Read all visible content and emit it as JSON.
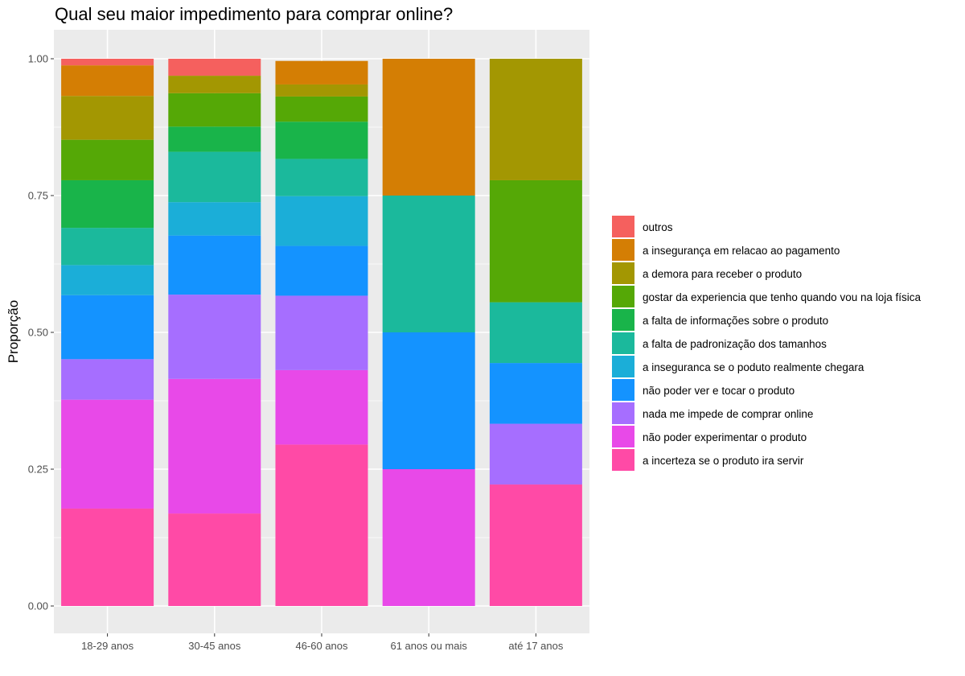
{
  "chart_data": {
    "type": "bar",
    "stacked": true,
    "normalized": true,
    "title": "Qual seu maior impedimento para comprar online?",
    "xlabel": "",
    "ylabel": "Proporção",
    "ylim": [
      0,
      1
    ],
    "yticks": [
      "0.00",
      "0.25",
      "0.50",
      "0.75",
      "1.00"
    ],
    "ytick_values": [
      0,
      0.25,
      0.5,
      0.75,
      1
    ],
    "grid": true,
    "legend_position": "right",
    "categories": [
      "18-29 anos",
      "30-45 anos",
      "46-60 anos",
      "61 anos ou mais",
      "até 17 anos"
    ],
    "series": [
      {
        "name": "a incerteza se o produto ira servir",
        "color": "#FF4AA6",
        "values": [
          0.178,
          0.169,
          0.295,
          0.0,
          0.222
        ]
      },
      {
        "name": "não poder experimentar o produto",
        "color": "#E849E8",
        "values": [
          0.199,
          0.246,
          0.136,
          0.25,
          0.0
        ]
      },
      {
        "name": "nada me impede de comprar online",
        "color": "#A66EFF",
        "values": [
          0.074,
          0.154,
          0.136,
          0.0,
          0.111
        ]
      },
      {
        "name": "não poder ver e tocar o produto",
        "color": "#1493FF",
        "values": [
          0.117,
          0.108,
          0.091,
          0.25,
          0.111
        ]
      },
      {
        "name": "a inseguranca se o poduto realmente chegara",
        "color": "#1BAED8",
        "values": [
          0.055,
          0.061,
          0.091,
          0.0,
          0.0
        ]
      },
      {
        "name": "a falta de padronização dos tamanhos",
        "color": "#1BB99C",
        "values": [
          0.068,
          0.092,
          0.068,
          0.25,
          0.111
        ]
      },
      {
        "name": "a falta de informações sobre o produto",
        "color": "#19B44A",
        "values": [
          0.087,
          0.046,
          0.068,
          0.0,
          0.0
        ]
      },
      {
        "name": "gostar da experiencia que tenho quando vou na loja física",
        "color": "#55A806",
        "values": [
          0.074,
          0.061,
          0.046,
          0.0,
          0.223
        ]
      },
      {
        "name": "a demora para receber o produto",
        "color": "#A39702",
        "values": [
          0.08,
          0.032,
          0.022,
          0.0,
          0.222
        ]
      },
      {
        "name": "a insegurança em relacao ao pagamento",
        "color": "#D47E04",
        "values": [
          0.056,
          0.0,
          0.043,
          0.25,
          0.0
        ]
      },
      {
        "name": "outros",
        "color": "#F5605E",
        "values": [
          0.012,
          0.031,
          0.0,
          0.0,
          0.0
        ]
      }
    ]
  }
}
